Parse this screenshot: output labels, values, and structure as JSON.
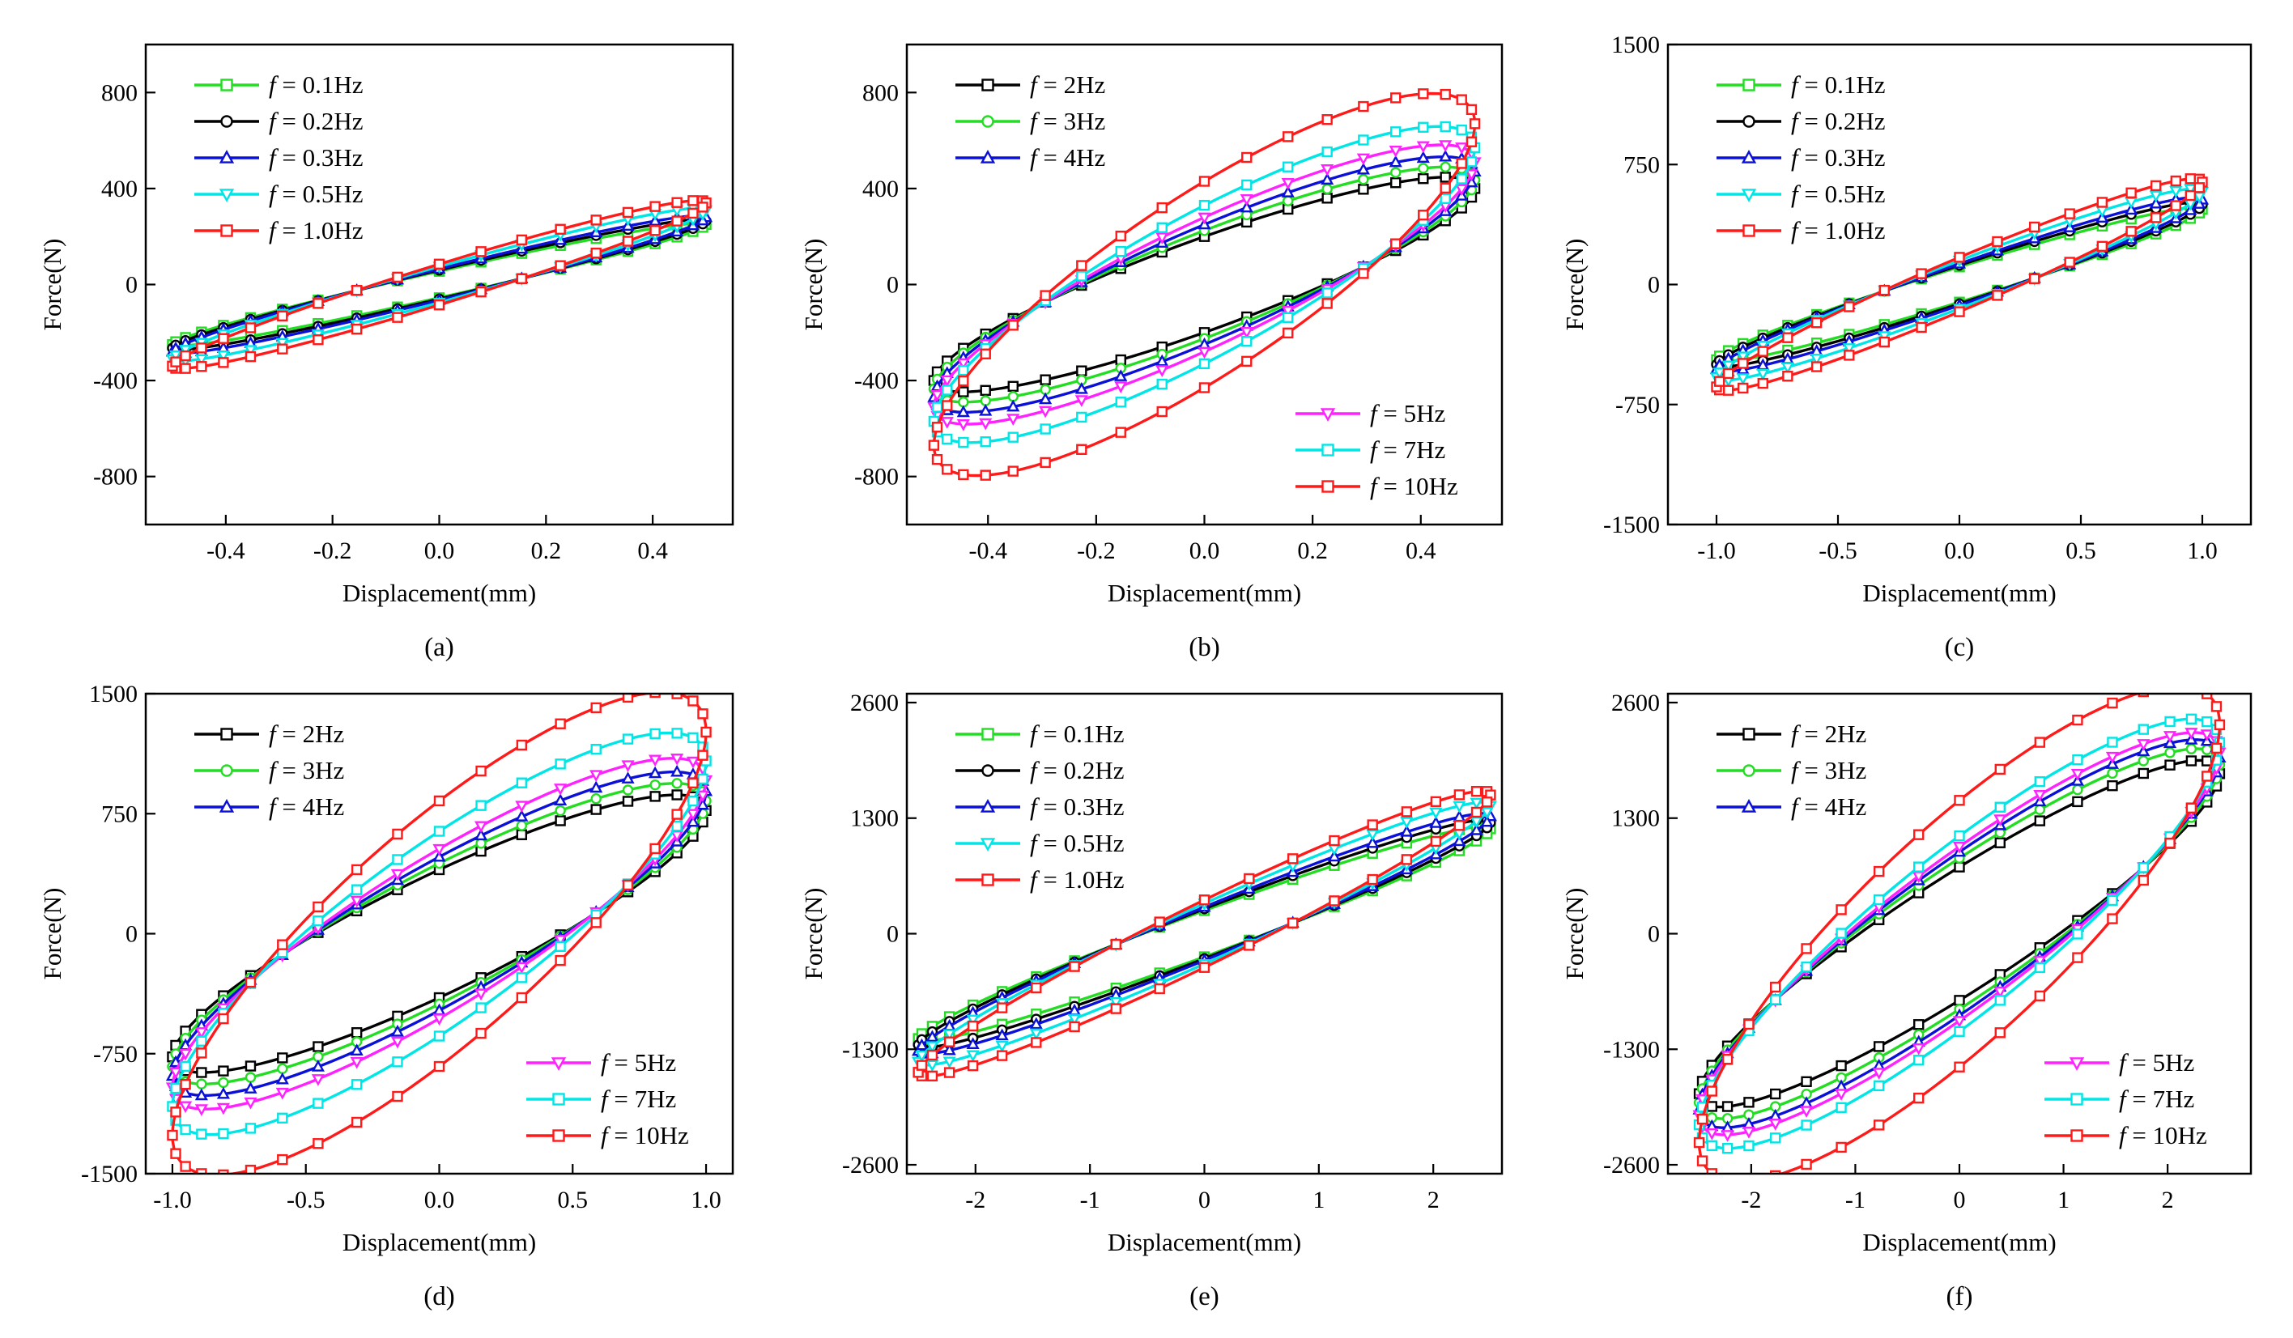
{
  "figure": {
    "panel_labels": [
      "(a)",
      "(b)",
      "(c)",
      "(d)",
      "(e)",
      "(f)"
    ],
    "freq_prefix": "f",
    "colors": {
      "0.1Hz": "#22dd22",
      "0.2Hz": "#000000",
      "0.3Hz": "#0a10d8",
      "0.5Hz": "#00e5e5",
      "1.0Hz": "#ff1a1a",
      "2Hz": "#000000",
      "3Hz": "#22dd22",
      "4Hz": "#0a10d8",
      "5Hz": "#ff22ff",
      "7Hz": "#00e5e5",
      "10Hz": "#ff1a1a"
    }
  },
  "chart_data": [
    {
      "type": "line",
      "label": "(a)",
      "xlabel": "Displacement(mm)",
      "ylabel": "Force(N)",
      "xlim": [
        -0.55,
        0.55
      ],
      "ylim": [
        -1000,
        1000
      ],
      "xticks": [
        -0.4,
        -0.2,
        0.0,
        0.2,
        0.4
      ],
      "xtick_labels": [
        "-0.4",
        "-0.2",
        "0.0",
        "0.2",
        "0.4"
      ],
      "yticks": [
        -800,
        -400,
        0,
        400,
        800
      ],
      "ytick_labels": [
        "-800",
        "-400",
        "0",
        "400",
        "800"
      ],
      "legend_location": "top-left",
      "series": [
        {
          "name": "= 0.1Hz",
          "key": "0.1Hz",
          "marker": "square",
          "amplitude": 0.5,
          "fmax": 250,
          "half_width": 55
        },
        {
          "name": "= 0.2Hz",
          "key": "0.2Hz",
          "marker": "circle",
          "amplitude": 0.5,
          "fmax": 265,
          "half_width": 60
        },
        {
          "name": "= 0.3Hz",
          "key": "0.3Hz",
          "marker": "triangle-up",
          "amplitude": 0.5,
          "fmax": 280,
          "half_width": 65
        },
        {
          "name": "= 0.5Hz",
          "key": "0.5Hz",
          "marker": "triangle-down",
          "amplitude": 0.5,
          "fmax": 310,
          "half_width": 75
        },
        {
          "name": "= 1.0Hz",
          "key": "1.0Hz",
          "marker": "square",
          "amplitude": 0.5,
          "fmax": 340,
          "half_width": 85
        }
      ]
    },
    {
      "type": "line",
      "label": "(b)",
      "xlabel": "Displacement(mm)",
      "ylabel": "Force(N)",
      "xlim": [
        -0.55,
        0.55
      ],
      "ylim": [
        -1000,
        1000
      ],
      "xticks": [
        -0.4,
        -0.2,
        0.0,
        0.2,
        0.4
      ],
      "xtick_labels": [
        "-0.4",
        "-0.2",
        "0.0",
        "0.2",
        "0.4"
      ],
      "yticks": [
        -800,
        -400,
        0,
        400,
        800
      ],
      "ytick_labels": [
        "-800",
        "-400",
        "0",
        "400",
        "800"
      ],
      "legend_location": "top-left and bottom-right",
      "series": [
        {
          "name": "= 2Hz",
          "key": "2Hz",
          "marker": "square",
          "legend_group": 1,
          "amplitude": 0.5,
          "fmax": 400,
          "half_width": 200
        },
        {
          "name": "= 3Hz",
          "key": "3Hz",
          "marker": "circle",
          "legend_group": 1,
          "amplitude": 0.5,
          "fmax": 435,
          "half_width": 225
        },
        {
          "name": "= 4Hz",
          "key": "4Hz",
          "marker": "triangle-up",
          "legend_group": 1,
          "amplitude": 0.5,
          "fmax": 470,
          "half_width": 250
        },
        {
          "name": "= 5Hz",
          "key": "5Hz",
          "marker": "triangle-down",
          "legend_group": 2,
          "amplitude": 0.5,
          "fmax": 510,
          "half_width": 280
        },
        {
          "name": "= 7Hz",
          "key": "7Hz",
          "marker": "square",
          "legend_group": 2,
          "amplitude": 0.5,
          "fmax": 570,
          "half_width": 330
        },
        {
          "name": "= 10Hz",
          "key": "10Hz",
          "marker": "square",
          "legend_group": 2,
          "amplitude": 0.5,
          "fmax": 670,
          "half_width": 430
        }
      ]
    },
    {
      "type": "line",
      "label": "(c)",
      "xlabel": "Displacement(mm)",
      "ylabel": "Force(N)",
      "xlim": [
        -1.2,
        1.2
      ],
      "ylim": [
        -1500,
        1500
      ],
      "xticks": [
        -1.0,
        -0.5,
        0.0,
        0.5,
        1.0
      ],
      "xtick_labels": [
        "-1.0",
        "-0.5",
        "0.0",
        "0.5",
        "1.0"
      ],
      "yticks": [
        -1500,
        -750,
        0,
        750,
        1500
      ],
      "ytick_labels": [
        "-1500",
        "-750",
        "0",
        "750",
        "1500"
      ],
      "legend_location": "top-left",
      "series": [
        {
          "name": "= 0.1Hz",
          "key": "0.1Hz",
          "marker": "square",
          "amplitude": 1.0,
          "fmax": 470,
          "half_width": 110
        },
        {
          "name": "= 0.2Hz",
          "key": "0.2Hz",
          "marker": "circle",
          "amplitude": 1.0,
          "fmax": 500,
          "half_width": 120
        },
        {
          "name": "= 0.3Hz",
          "key": "0.3Hz",
          "marker": "triangle-up",
          "amplitude": 1.0,
          "fmax": 530,
          "half_width": 130
        },
        {
          "name": "= 0.5Hz",
          "key": "0.5Hz",
          "marker": "triangle-down",
          "amplitude": 1.0,
          "fmax": 580,
          "half_width": 150
        },
        {
          "name": "= 1.0Hz",
          "key": "1.0Hz",
          "marker": "square",
          "amplitude": 1.0,
          "fmax": 640,
          "half_width": 170
        }
      ]
    },
    {
      "type": "line",
      "label": "(d)",
      "xlabel": "Displacement(mm)",
      "ylabel": "Force(N)",
      "xlim": [
        -1.1,
        1.1
      ],
      "ylim": [
        -1500,
        1500
      ],
      "xticks": [
        -1.0,
        -0.5,
        0.0,
        0.5,
        1.0
      ],
      "xtick_labels": [
        "-1.0",
        "-0.5",
        "0.0",
        "0.5",
        "1.0"
      ],
      "yticks": [
        -1500,
        -750,
        0,
        750,
        1500
      ],
      "ytick_labels": [
        "-1500",
        "-750",
        "0",
        "750",
        "1500"
      ],
      "legend_location": "top-left and bottom-right",
      "series": [
        {
          "name": "= 2Hz",
          "key": "2Hz",
          "marker": "square",
          "legend_group": 1,
          "amplitude": 1.0,
          "fmax": 770,
          "half_width": 400
        },
        {
          "name": "= 3Hz",
          "key": "3Hz",
          "marker": "circle",
          "legend_group": 1,
          "amplitude": 1.0,
          "fmax": 830,
          "half_width": 440
        },
        {
          "name": "= 4Hz",
          "key": "4Hz",
          "marker": "triangle-up",
          "legend_group": 1,
          "amplitude": 1.0,
          "fmax": 890,
          "half_width": 480
        },
        {
          "name": "= 5Hz",
          "key": "5Hz",
          "marker": "triangle-down",
          "legend_group": 2,
          "amplitude": 1.0,
          "fmax": 960,
          "half_width": 530
        },
        {
          "name": "= 7Hz",
          "key": "7Hz",
          "marker": "square",
          "legend_group": 2,
          "amplitude": 1.0,
          "fmax": 1080,
          "half_width": 640
        },
        {
          "name": "= 10Hz",
          "key": "10Hz",
          "marker": "square",
          "legend_group": 2,
          "amplitude": 1.0,
          "fmax": 1260,
          "half_width": 830
        }
      ]
    },
    {
      "type": "line",
      "label": "(e)",
      "xlabel": "Displacement(mm)",
      "ylabel": "Force(N)",
      "xlim": [
        -2.6,
        2.6
      ],
      "ylim": [
        -2700,
        2700
      ],
      "xticks": [
        -2,
        -1,
        0,
        1,
        2
      ],
      "xtick_labels": [
        "-2",
        "-1",
        "0",
        "1",
        "2"
      ],
      "yticks": [
        -2600,
        -1300,
        0,
        1300,
        2600
      ],
      "ytick_labels": [
        "-2600",
        "-1300",
        "0",
        "1300",
        "2600"
      ],
      "legend_location": "top-left",
      "series": [
        {
          "name": "= 0.1Hz",
          "key": "0.1Hz",
          "marker": "square",
          "amplitude": 2.5,
          "fmax": 1180,
          "half_width": 260
        },
        {
          "name": "= 0.2Hz",
          "key": "0.2Hz",
          "marker": "circle",
          "amplitude": 2.5,
          "fmax": 1250,
          "half_width": 280
        },
        {
          "name": "= 0.3Hz",
          "key": "0.3Hz",
          "marker": "triangle-up",
          "amplitude": 2.5,
          "fmax": 1320,
          "half_width": 300
        },
        {
          "name": "= 0.5Hz",
          "key": "0.5Hz",
          "marker": "triangle-down",
          "amplitude": 2.5,
          "fmax": 1440,
          "half_width": 340
        },
        {
          "name": "= 1.0Hz",
          "key": "1.0Hz",
          "marker": "square",
          "amplitude": 2.5,
          "fmax": 1560,
          "half_width": 380
        }
      ]
    },
    {
      "type": "line",
      "label": "(f)",
      "xlabel": "Displacement(mm)",
      "ylabel": "Force(N)",
      "xlim": [
        -2.8,
        2.8
      ],
      "ylim": [
        -2700,
        2700
      ],
      "xticks": [
        -2,
        -1,
        0,
        1,
        2
      ],
      "xtick_labels": [
        "-2",
        "-1",
        "0",
        "1",
        "2"
      ],
      "yticks": [
        -2600,
        -1300,
        0,
        1300,
        2600
      ],
      "ytick_labels": [
        "-2600",
        "-1300",
        "0",
        "1300",
        "2600"
      ],
      "legend_location": "top-left and bottom-right",
      "series": [
        {
          "name": "= 2Hz",
          "key": "2Hz",
          "marker": "square",
          "legend_group": 1,
          "amplitude": 2.5,
          "fmax": 1800,
          "half_width": 750
        },
        {
          "name": "= 3Hz",
          "key": "3Hz",
          "marker": "circle",
          "legend_group": 1,
          "amplitude": 2.5,
          "fmax": 1900,
          "half_width": 850
        },
        {
          "name": "= 4Hz",
          "key": "4Hz",
          "marker": "triangle-up",
          "legend_group": 1,
          "amplitude": 2.5,
          "fmax": 1980,
          "half_width": 920
        },
        {
          "name": "= 5Hz",
          "key": "5Hz",
          "marker": "triangle-down",
          "legend_group": 2,
          "amplitude": 2.5,
          "fmax": 2040,
          "half_width": 980
        },
        {
          "name": "= 7Hz",
          "key": "7Hz",
          "marker": "square",
          "legend_group": 2,
          "amplitude": 2.5,
          "fmax": 2150,
          "half_width": 1100
        },
        {
          "name": "= 10Hz",
          "key": "10Hz",
          "marker": "square",
          "legend_group": 2,
          "amplitude": 2.5,
          "fmax": 2350,
          "half_width": 1500
        }
      ]
    }
  ]
}
